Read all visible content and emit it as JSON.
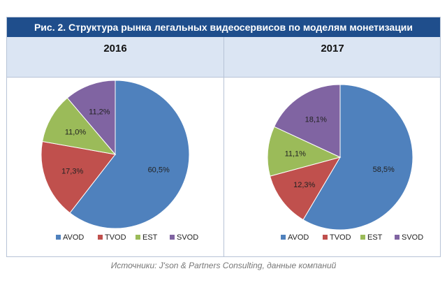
{
  "title": "Рис. 2. Структура рынка легальных видеосервисов по моделям монетизации",
  "source": "Источники: J'son & Partners Consulting, данные компаний",
  "colors": {
    "AVOD": "#4f81bd",
    "TVOD": "#c0504d",
    "EST": "#9bbb59",
    "SVOD": "#8064a2"
  },
  "chart_data": [
    {
      "type": "pie",
      "title": "2016",
      "categories": [
        "AVOD",
        "TVOD",
        "EST",
        "SVOD"
      ],
      "values": [
        60.5,
        17.3,
        11.0,
        11.2
      ],
      "labels": [
        "60,5%",
        "17,3%",
        "11,0%",
        "11,2%"
      ],
      "legend": "bottom"
    },
    {
      "type": "pie",
      "title": "2017",
      "categories": [
        "AVOD",
        "TVOD",
        "EST",
        "SVOD"
      ],
      "values": [
        58.5,
        12.3,
        11.1,
        18.1
      ],
      "labels": [
        "58,5%",
        "12,3%",
        "11,1%",
        "18,1%"
      ],
      "legend": "bottom"
    }
  ]
}
